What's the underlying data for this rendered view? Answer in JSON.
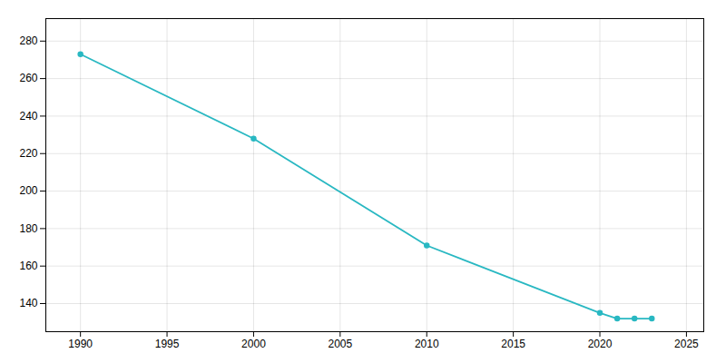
{
  "chart_data": {
    "type": "line",
    "x": [
      1990,
      2000,
      2010,
      2020,
      2021,
      2022,
      2023
    ],
    "values": [
      273,
      228,
      171,
      135,
      132,
      132,
      132
    ],
    "color": "#29b8c2",
    "marker": "circle",
    "xlim": [
      1988,
      2026
    ],
    "xticks": [
      1990,
      1995,
      2000,
      2005,
      2010,
      2015,
      2020,
      2025
    ],
    "ylim": [
      125,
      292
    ],
    "yticks": [
      140,
      160,
      180,
      200,
      220,
      240,
      260,
      280
    ],
    "grid": true
  }
}
